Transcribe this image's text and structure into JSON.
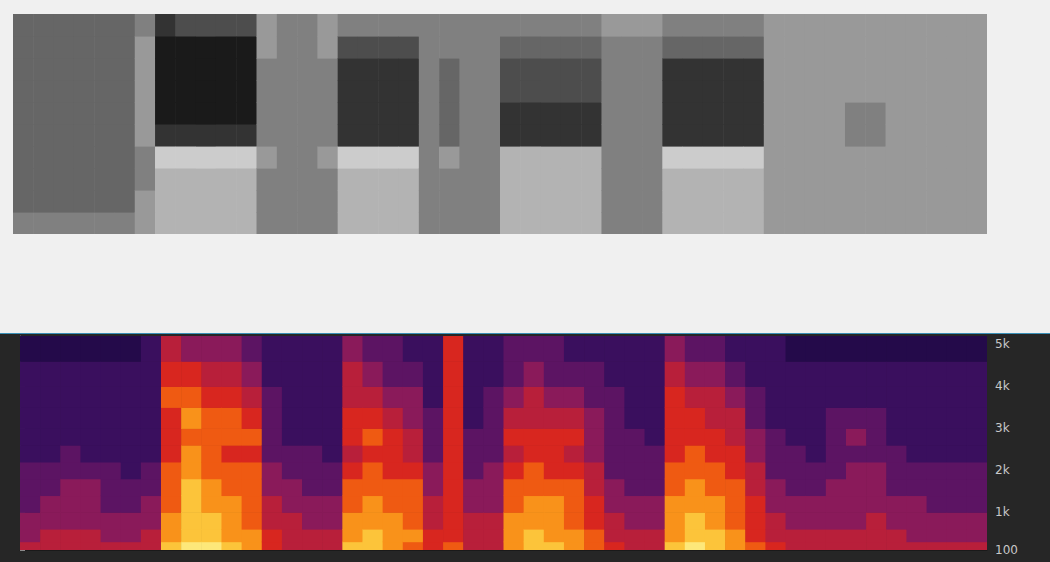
{
  "chart_data": [
    {
      "type": "heatmap",
      "color": "black",
      "tick_labels": false,
      "xlim": [
        0,
        48
      ],
      "ylim": [
        0,
        10
      ],
      "zlim": [
        0,
        10
      ],
      "cells": [
        [
          5,
          6,
          6,
          6,
          6,
          6,
          6,
          6,
          6,
          6
        ],
        [
          5,
          6,
          6,
          6,
          6,
          6,
          6,
          6,
          6,
          6
        ],
        [
          5,
          6,
          6,
          6,
          6,
          6,
          6,
          6,
          6,
          6
        ],
        [
          5,
          6,
          6,
          6,
          6,
          6,
          6,
          6,
          6,
          6
        ],
        [
          5,
          6,
          6,
          6,
          6,
          6,
          6,
          6,
          6,
          6
        ],
        [
          5,
          6,
          6,
          6,
          6,
          6,
          6,
          6,
          6,
          6
        ],
        [
          4,
          4,
          5,
          5,
          4,
          4,
          4,
          4,
          4,
          5
        ],
        [
          3,
          3,
          3,
          2,
          8,
          9,
          9,
          9,
          9,
          8
        ],
        [
          3,
          3,
          3,
          2,
          8,
          9,
          9,
          9,
          9,
          7
        ],
        [
          3,
          3,
          3,
          2,
          8,
          9,
          9,
          9,
          9,
          7
        ],
        [
          3,
          3,
          3,
          2,
          8,
          9,
          9,
          9,
          9,
          7
        ],
        [
          3,
          3,
          3,
          2,
          8,
          9,
          9,
          9,
          9,
          7
        ],
        [
          5,
          5,
          5,
          4,
          5,
          5,
          5,
          5,
          4,
          4
        ],
        [
          5,
          5,
          5,
          5,
          5,
          5,
          5,
          5,
          5,
          5
        ],
        [
          5,
          5,
          5,
          5,
          5,
          5,
          5,
          5,
          5,
          5
        ],
        [
          5,
          5,
          5,
          4,
          5,
          5,
          5,
          5,
          4,
          4
        ],
        [
          3,
          3,
          3,
          2,
          8,
          8,
          8,
          8,
          7,
          5
        ],
        [
          3,
          3,
          3,
          2,
          8,
          8,
          8,
          8,
          7,
          5
        ],
        [
          3,
          3,
          3,
          2,
          8,
          8,
          8,
          8,
          7,
          5
        ],
        [
          3,
          3,
          3,
          2,
          8,
          8,
          8,
          8,
          7,
          5
        ],
        [
          5,
          5,
          5,
          5,
          5,
          5,
          5,
          5,
          5,
          5
        ],
        [
          5,
          5,
          5,
          4,
          6,
          6,
          6,
          6,
          5,
          5
        ],
        [
          5,
          5,
          5,
          5,
          5,
          5,
          5,
          5,
          5,
          5
        ],
        [
          5,
          5,
          5,
          5,
          5,
          5,
          5,
          5,
          5,
          5
        ],
        [
          3,
          3,
          3,
          3,
          8,
          8,
          7,
          7,
          6,
          5
        ],
        [
          3,
          3,
          3,
          3,
          8,
          8,
          7,
          7,
          6,
          5
        ],
        [
          3,
          3,
          3,
          3,
          8,
          8,
          7,
          7,
          6,
          5
        ],
        [
          3,
          3,
          3,
          3,
          8,
          8,
          7,
          7,
          6,
          5
        ],
        [
          3,
          3,
          3,
          3,
          8,
          8,
          7,
          7,
          6,
          5
        ],
        [
          5,
          5,
          5,
          5,
          5,
          5,
          5,
          5,
          5,
          4
        ],
        [
          5,
          5,
          5,
          5,
          5,
          5,
          5,
          5,
          5,
          4
        ],
        [
          5,
          5,
          5,
          5,
          5,
          5,
          5,
          5,
          5,
          4
        ],
        [
          3,
          3,
          3,
          2,
          8,
          8,
          8,
          8,
          6,
          5
        ],
        [
          3,
          3,
          3,
          2,
          8,
          8,
          8,
          8,
          6,
          5
        ],
        [
          3,
          3,
          3,
          2,
          8,
          8,
          8,
          8,
          6,
          5
        ],
        [
          3,
          3,
          3,
          2,
          8,
          8,
          8,
          8,
          6,
          5
        ],
        [
          3,
          3,
          3,
          2,
          8,
          8,
          8,
          8,
          6,
          5
        ],
        [
          4,
          4,
          4,
          4,
          4,
          4,
          4,
          4,
          4,
          4
        ],
        [
          4,
          4,
          4,
          4,
          4,
          4,
          4,
          4,
          4,
          4
        ],
        [
          4,
          4,
          4,
          4,
          4,
          4,
          4,
          4,
          4,
          4
        ],
        [
          4,
          4,
          4,
          4,
          4,
          4,
          4,
          4,
          4,
          4
        ],
        [
          4,
          4,
          4,
          4,
          5,
          5,
          4,
          4,
          4,
          4
        ],
        [
          4,
          4,
          4,
          4,
          5,
          5,
          4,
          4,
          4,
          4
        ],
        [
          4,
          4,
          4,
          4,
          4,
          4,
          4,
          4,
          4,
          4
        ],
        [
          4,
          4,
          4,
          4,
          4,
          4,
          4,
          4,
          4,
          4
        ],
        [
          4,
          4,
          4,
          4,
          4,
          4,
          4,
          4,
          4,
          4
        ],
        [
          4,
          4,
          4,
          4,
          4,
          4,
          4,
          4,
          4,
          4
        ],
        [
          4,
          4,
          4,
          4,
          4,
          4,
          4,
          4,
          4,
          4
        ]
      ]
    },
    {
      "type": "heatmap",
      "color": "inferno",
      "tick_labels": "y",
      "xlim": [
        0,
        48
      ],
      "ylim": [
        100,
        5200
      ],
      "zlim": [
        0,
        10
      ],
      "yticks": [
        100,
        {
          "value": 1000,
          "label": "1k"
        },
        {
          "value": 2000,
          "label": "2k"
        },
        {
          "value": 3000,
          "label": "3k"
        },
        {
          "value": 4000,
          "label": "4k"
        },
        {
          "value": 5000,
          "label": "5k"
        }
      ],
      "freq_bins": [
        100,
        300,
        600,
        1000,
        1400,
        1800,
        2200,
        2600,
        3000,
        3500,
        4000,
        4600,
        5200
      ],
      "cells": [
        [
          5,
          4,
          4,
          3,
          3,
          3,
          2,
          2,
          2,
          2,
          2,
          1
        ],
        [
          5,
          5,
          4,
          4,
          3,
          3,
          2,
          2,
          2,
          2,
          2,
          1
        ],
        [
          5,
          5,
          4,
          4,
          4,
          3,
          3,
          2,
          2,
          2,
          2,
          1
        ],
        [
          5,
          5,
          4,
          4,
          4,
          3,
          2,
          2,
          2,
          2,
          2,
          1
        ],
        [
          5,
          4,
          4,
          3,
          3,
          3,
          2,
          2,
          2,
          2,
          2,
          1
        ],
        [
          5,
          4,
          4,
          3,
          3,
          2,
          2,
          2,
          2,
          2,
          2,
          1
        ],
        [
          5,
          5,
          4,
          4,
          3,
          3,
          2,
          2,
          2,
          2,
          2,
          2
        ],
        [
          9,
          8,
          8,
          7,
          7,
          7,
          6,
          6,
          6,
          7,
          6,
          5
        ],
        [
          10,
          9,
          9,
          9,
          9,
          8,
          8,
          7,
          8,
          7,
          6,
          4
        ],
        [
          10,
          9,
          9,
          8,
          8,
          7,
          7,
          7,
          7,
          6,
          5,
          4
        ],
        [
          9,
          8,
          8,
          8,
          7,
          7,
          6,
          7,
          7,
          6,
          5,
          4
        ],
        [
          8,
          8,
          7,
          7,
          7,
          7,
          6,
          7,
          6,
          5,
          4,
          3
        ],
        [
          6,
          6,
          5,
          5,
          4,
          4,
          3,
          3,
          3,
          3,
          2,
          2
        ],
        [
          5,
          5,
          5,
          4,
          4,
          3,
          3,
          2,
          2,
          2,
          2,
          2
        ],
        [
          5,
          5,
          4,
          4,
          3,
          3,
          3,
          2,
          2,
          2,
          2,
          2
        ],
        [
          5,
          5,
          4,
          4,
          3,
          3,
          2,
          2,
          2,
          2,
          2,
          2
        ],
        [
          9,
          8,
          8,
          7,
          7,
          6,
          5,
          6,
          6,
          5,
          5,
          4
        ],
        [
          9,
          9,
          8,
          8,
          7,
          7,
          6,
          7,
          6,
          5,
          4,
          3
        ],
        [
          8,
          8,
          8,
          7,
          7,
          6,
          6,
          6,
          5,
          4,
          3,
          3
        ],
        [
          7,
          8,
          7,
          7,
          7,
          6,
          5,
          5,
          4,
          4,
          3,
          2
        ],
        [
          6,
          6,
          5,
          5,
          4,
          4,
          3,
          3,
          3,
          2,
          2,
          2
        ],
        [
          7,
          6,
          6,
          6,
          6,
          6,
          6,
          6,
          6,
          6,
          6,
          6
        ],
        [
          5,
          5,
          5,
          4,
          4,
          3,
          3,
          3,
          2,
          2,
          2,
          2
        ],
        [
          5,
          5,
          5,
          4,
          4,
          4,
          3,
          3,
          3,
          3,
          2,
          2
        ],
        [
          8,
          8,
          8,
          7,
          7,
          6,
          5,
          6,
          5,
          4,
          3,
          3
        ],
        [
          9,
          9,
          8,
          8,
          7,
          7,
          6,
          6,
          5,
          5,
          4,
          3
        ],
        [
          9,
          8,
          8,
          8,
          7,
          6,
          6,
          6,
          5,
          4,
          3,
          3
        ],
        [
          8,
          8,
          7,
          7,
          7,
          6,
          5,
          6,
          5,
          4,
          3,
          2
        ],
        [
          7,
          7,
          6,
          6,
          5,
          5,
          4,
          4,
          4,
          3,
          3,
          2
        ],
        [
          6,
          5,
          5,
          4,
          4,
          3,
          3,
          3,
          3,
          3,
          2,
          2
        ],
        [
          5,
          5,
          4,
          4,
          3,
          3,
          3,
          3,
          2,
          2,
          2,
          2
        ],
        [
          5,
          5,
          4,
          4,
          3,
          3,
          3,
          2,
          2,
          2,
          2,
          2
        ],
        [
          9,
          8,
          8,
          8,
          7,
          7,
          6,
          6,
          6,
          6,
          5,
          4
        ],
        [
          10,
          9,
          9,
          8,
          8,
          7,
          7,
          6,
          6,
          5,
          4,
          3
        ],
        [
          9,
          9,
          8,
          8,
          7,
          7,
          6,
          6,
          5,
          5,
          4,
          3
        ],
        [
          8,
          8,
          7,
          7,
          7,
          6,
          6,
          5,
          5,
          4,
          3,
          2
        ],
        [
          7,
          6,
          6,
          6,
          5,
          5,
          4,
          4,
          3,
          3,
          2,
          2
        ],
        [
          6,
          5,
          5,
          4,
          4,
          3,
          3,
          3,
          2,
          2,
          2,
          2
        ],
        [
          5,
          5,
          4,
          4,
          3,
          3,
          3,
          2,
          2,
          2,
          2,
          1
        ],
        [
          5,
          5,
          4,
          4,
          3,
          3,
          2,
          2,
          2,
          2,
          2,
          1
        ],
        [
          5,
          5,
          4,
          4,
          4,
          3,
          3,
          3,
          3,
          2,
          2,
          1
        ],
        [
          5,
          5,
          4,
          4,
          4,
          4,
          3,
          4,
          3,
          2,
          2,
          1
        ],
        [
          5,
          5,
          5,
          4,
          4,
          4,
          3,
          3,
          3,
          2,
          2,
          1
        ],
        [
          5,
          5,
          4,
          4,
          3,
          3,
          3,
          2,
          2,
          2,
          2,
          1
        ],
        [
          5,
          4,
          4,
          4,
          3,
          3,
          2,
          2,
          2,
          2,
          2,
          1
        ],
        [
          5,
          4,
          4,
          3,
          3,
          3,
          2,
          2,
          2,
          2,
          2,
          1
        ],
        [
          5,
          4,
          4,
          3,
          3,
          3,
          2,
          2,
          2,
          2,
          2,
          1
        ],
        [
          5,
          4,
          4,
          3,
          3,
          3,
          2,
          2,
          2,
          2,
          2,
          1
        ]
      ]
    }
  ]
}
